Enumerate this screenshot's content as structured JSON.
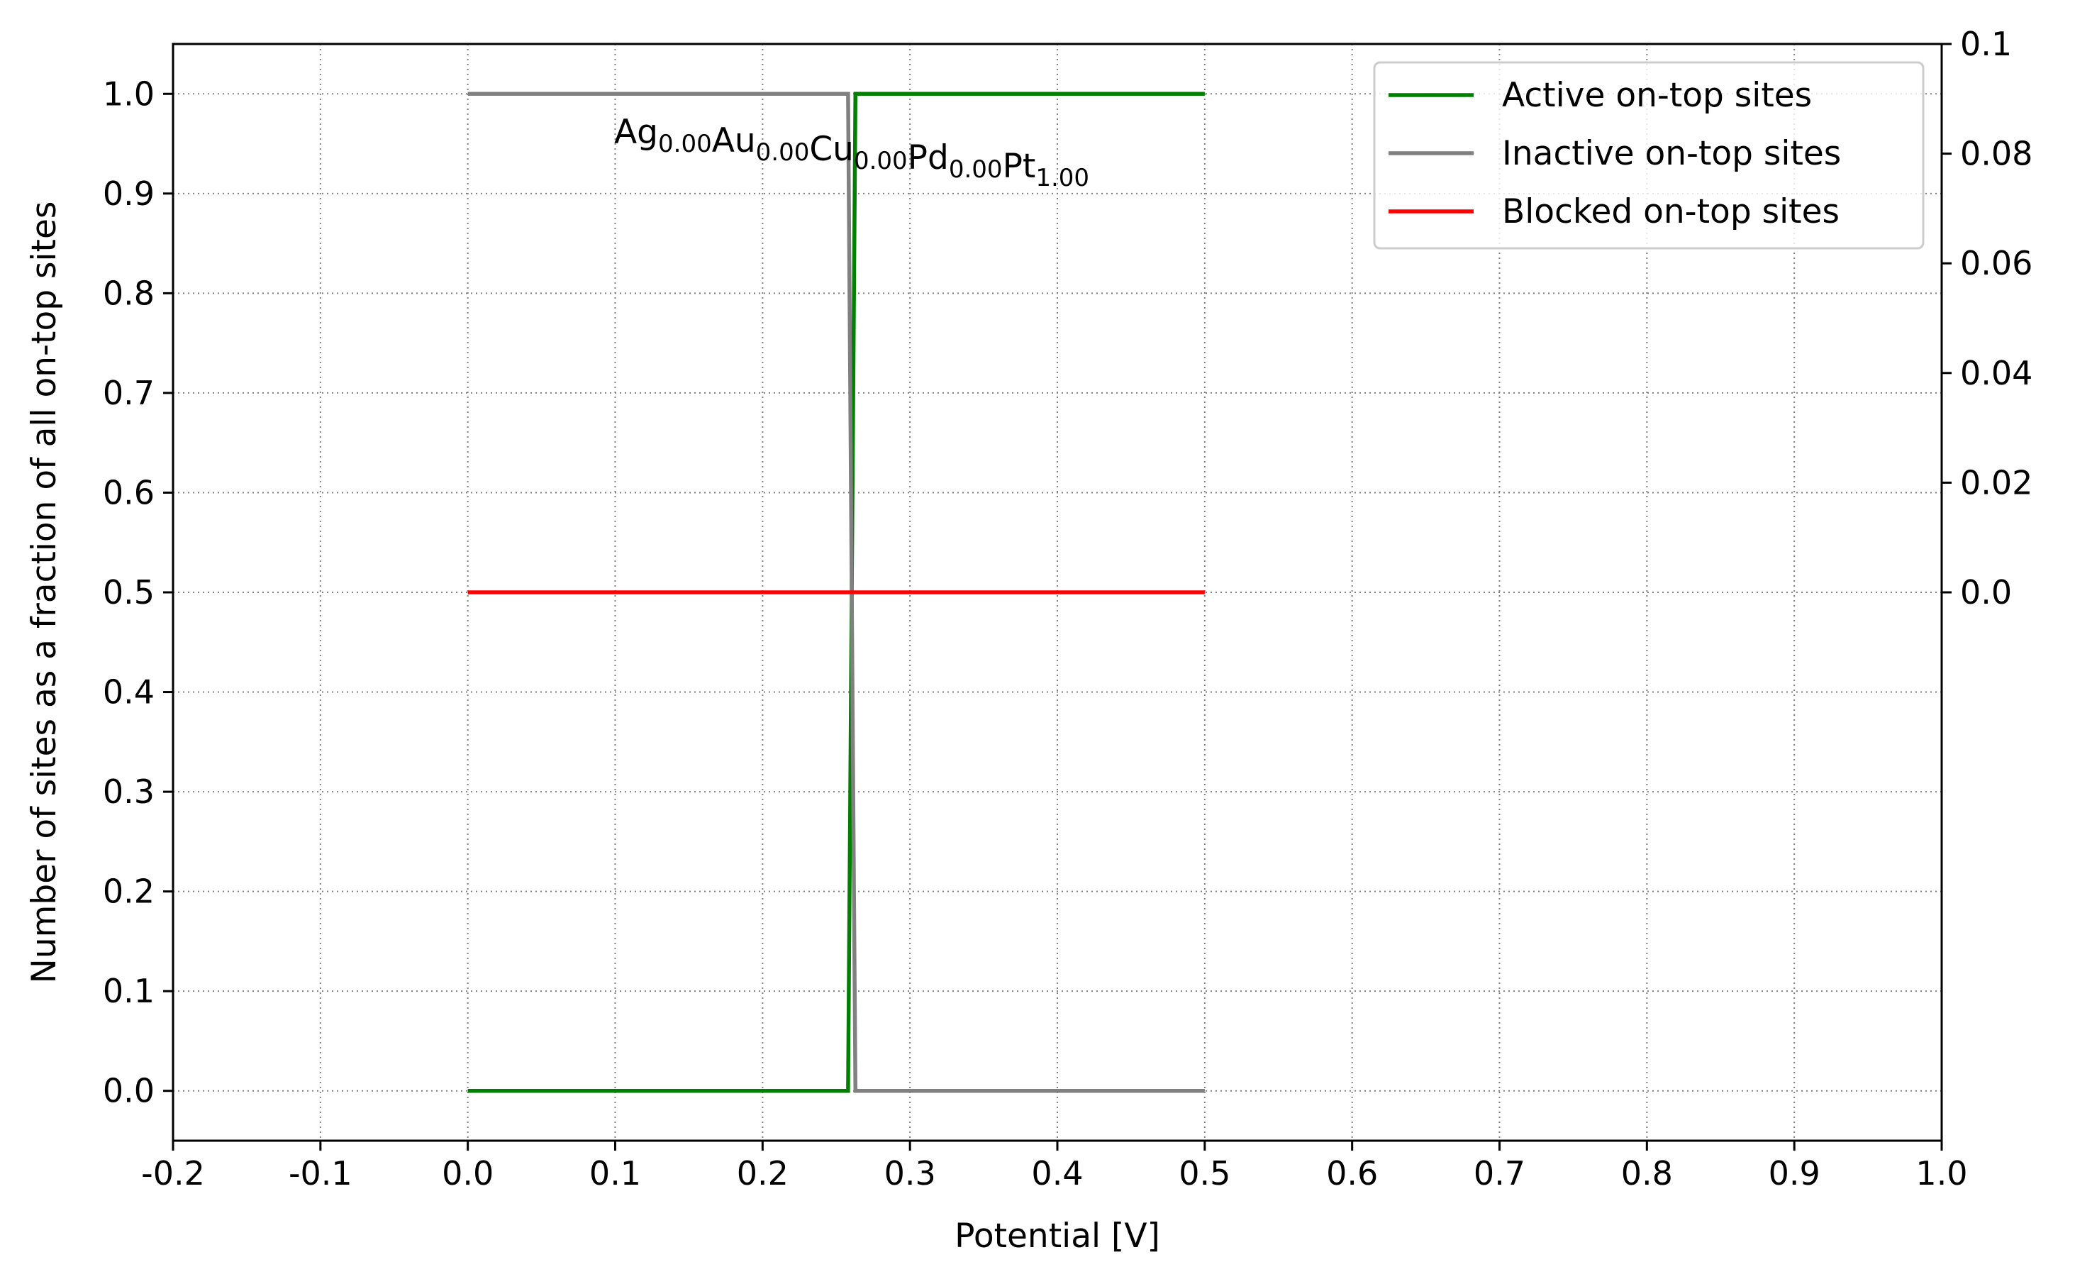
{
  "chart_data": {
    "type": "line",
    "xlabel": "Potential [V]",
    "ylabel": "Number of sites as a fraction of all on-top sites",
    "xlim": [
      -0.2,
      1.0
    ],
    "ylim": [
      -0.05,
      1.05
    ],
    "y2lim": [
      -0.1,
      0.1
    ],
    "grid": true,
    "legend_position": "top-right",
    "x_ticks": [
      "-0.2",
      "-0.1",
      "0.0",
      "0.1",
      "0.2",
      "0.3",
      "0.4",
      "0.5",
      "0.6",
      "0.7",
      "0.8",
      "0.9",
      "1.0"
    ],
    "y_ticks": [
      "0.0",
      "0.1",
      "0.2",
      "0.3",
      "0.4",
      "0.5",
      "0.6",
      "0.7",
      "0.8",
      "0.9",
      "1.0"
    ],
    "y2_ticks": [
      "0.0",
      "0.02",
      "0.04",
      "0.06",
      "0.08",
      "0.1"
    ],
    "composition": [
      {
        "element": "Ag",
        "fraction": "0.00"
      },
      {
        "element": "Au",
        "fraction": "0.00"
      },
      {
        "element": "Cu",
        "fraction": "0.00"
      },
      {
        "element": "Pd",
        "fraction": "0.00"
      },
      {
        "element": "Pt",
        "fraction": "1.00"
      }
    ],
    "series": [
      {
        "name": "Active on-top sites",
        "color": "#008000",
        "axis": "left",
        "points": [
          [
            0.0,
            0.0
          ],
          [
            0.258,
            0.0
          ],
          [
            0.263,
            1.0
          ],
          [
            0.5,
            1.0
          ]
        ]
      },
      {
        "name": "Inactive on-top sites",
        "color": "#808080",
        "axis": "left",
        "points": [
          [
            0.0,
            1.0
          ],
          [
            0.258,
            1.0
          ],
          [
            0.263,
            0.0
          ],
          [
            0.5,
            0.0
          ]
        ]
      },
      {
        "name": "Blocked on-top sites",
        "color": "#ff0000",
        "axis": "right",
        "points": [
          [
            0.0,
            0.0
          ],
          [
            0.5,
            0.0
          ]
        ]
      }
    ]
  }
}
